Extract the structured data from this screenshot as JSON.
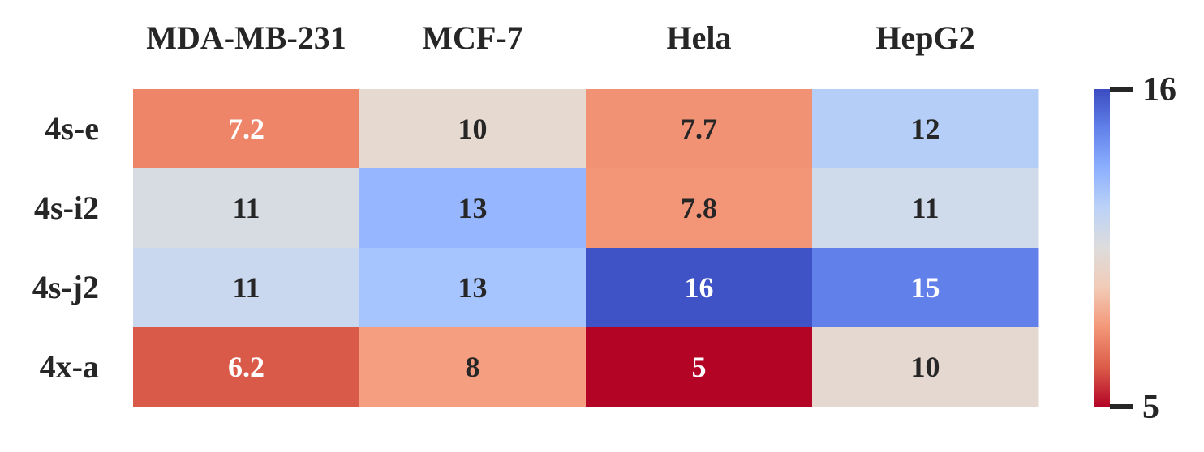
{
  "chart_data": {
    "type": "heatmap",
    "colormap": "coolwarm_r",
    "columns": [
      "MDA-MB-231",
      "MCF-7",
      "Hela",
      "HepG2"
    ],
    "rows": [
      "4s-e",
      "4s-i2",
      "4s-j2",
      "4x-a"
    ],
    "values": [
      [
        7.2,
        10,
        7.7,
        12
      ],
      [
        11,
        13,
        7.8,
        11
      ],
      [
        11,
        13,
        16,
        15
      ],
      [
        6.2,
        8,
        5,
        10
      ]
    ],
    "cell_labels": [
      [
        "7.2",
        "10",
        "7.7",
        "12"
      ],
      [
        "11",
        "13",
        "7.8",
        "11"
      ],
      [
        "11",
        "13",
        "16",
        "15"
      ],
      [
        "6.2",
        "8",
        "5",
        "10"
      ]
    ],
    "colorbar": {
      "min": 5,
      "max": 16,
      "tick_labels": [
        "5",
        "16"
      ]
    },
    "colors": {
      "cells": [
        [
          "#ee8468",
          "#e6d9cf",
          "#f29274",
          "#b5cef8"
        ],
        [
          "#d7dce3",
          "#96b7ff",
          "#f39577",
          "#cfdaea"
        ],
        [
          "#cad8ef",
          "#a6c4fe",
          "#3f53c6",
          "#6180e9"
        ],
        [
          "#da5a49",
          "#f59f80",
          "#b40426",
          "#e5d8d1"
        ]
      ],
      "light_text": "#ffffff",
      "dark_text": "#262626"
    }
  }
}
